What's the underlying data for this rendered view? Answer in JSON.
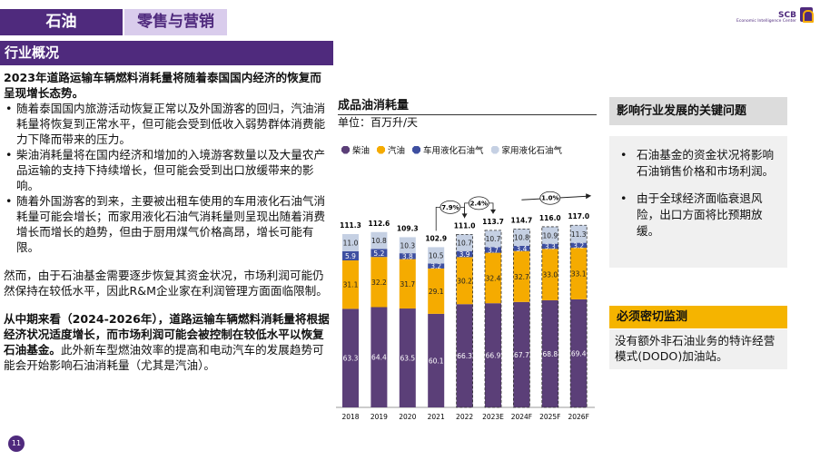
{
  "header": {
    "tab_oil": "石油",
    "tab_retail": "零售与营销",
    "logo_name": "SCB",
    "logo_sub": "Economic Intelligence Center"
  },
  "section_title": "行业概况",
  "left": {
    "heading1": "2023年道路运输车辆燃料消耗量将随着泰国国内经济的恢复而呈现增长态势。",
    "bullets": [
      "随着泰国国内旅游活动恢复正常以及外国游客的回归，汽油消耗量将恢复到正常水平，但可能会受到低收入弱势群体消费能力下降而带来的压力。",
      "柴油消耗量将在国内经济和增加的入境游客数量以及大量农产品运输的支持下持续增长，但可能会受到出口放缓带来的影响。",
      "随着外国游客的到来，主要被出租车使用的车用液化石油气消耗量可能会增长；而家用液化石油气消耗量则呈现出随着消费增长而增长的趋势，但由于厨用煤气价格高昂，增长可能有限。"
    ],
    "para2": "然而，由于石油基金需要逐步恢复其资金状况，市场利润可能仍然保持在较低水平，因此R&M企业家在利润管理方面面临限制。",
    "para3_bold": "从中期来看（2024-2026年），道路运输车辆燃料消耗量将根据经济状况适度增长，而市场利润可能会被控制在较低水平以恢复石油基金。",
    "para3_rest": "此外新车型燃油效率的提高和电动汽车的发展趋势可能会开始影响石油消耗量（尤其是汽油）。"
  },
  "page_number": "11",
  "chart_data": {
    "type": "bar",
    "stacked": true,
    "title": "成品油消耗量",
    "unit": "单位：百万升/天",
    "categories": [
      "2018",
      "2019",
      "2020",
      "2021",
      "2022",
      "2023E",
      "2024F",
      "2025F",
      "2026F"
    ],
    "series": [
      {
        "name": "柴油",
        "color": "#5b3f78",
        "values": [
          63.3,
          64.4,
          63.5,
          60.1,
          66.3,
          66.9,
          67.7,
          68.8,
          69.4
        ]
      },
      {
        "name": "汽油",
        "color": "#f5ab00",
        "values": [
          31.1,
          32.2,
          31.7,
          29.1,
          30.2,
          32.4,
          32.7,
          33.0,
          33.1
        ]
      },
      {
        "name": "车用液化石油气",
        "color": "#3e4fa0",
        "values": [
          5.9,
          5.2,
          3.8,
          3.2,
          3.9,
          3.7,
          3.4,
          3.3,
          3.2
        ]
      },
      {
        "name": "家用液化石油气",
        "color": "#c5d0e3",
        "values": [
          11.0,
          10.8,
          10.3,
          10.5,
          10.7,
          10.7,
          10.8,
          10.9,
          11.3
        ]
      }
    ],
    "totals": [
      "111.3",
      "112.6",
      "109.3",
      "102.9",
      "111.0",
      "113.7",
      "114.7",
      "116.0",
      "117.0"
    ],
    "growth_annotations": [
      {
        "label": "7.9%",
        "from": "2021",
        "to": "2022"
      },
      {
        "label": "2.4%",
        "from": "2022",
        "to": "2023E"
      },
      {
        "label": "1.0%",
        "from": "2024F",
        "to": "2026F"
      }
    ],
    "dashed_from": "2022"
  },
  "right": {
    "issues_title": "影响行业发展的关键问题",
    "issues": [
      "石油基金的资金状况将影响石油销售价格和市场利润。",
      "由于全球经济面临衰退风险，出口方面将比预期放缓。"
    ],
    "monitor_title": "必须密切监测",
    "monitor_text": "没有额外非石油业务的特许经营模式(DODO)加油站。"
  }
}
